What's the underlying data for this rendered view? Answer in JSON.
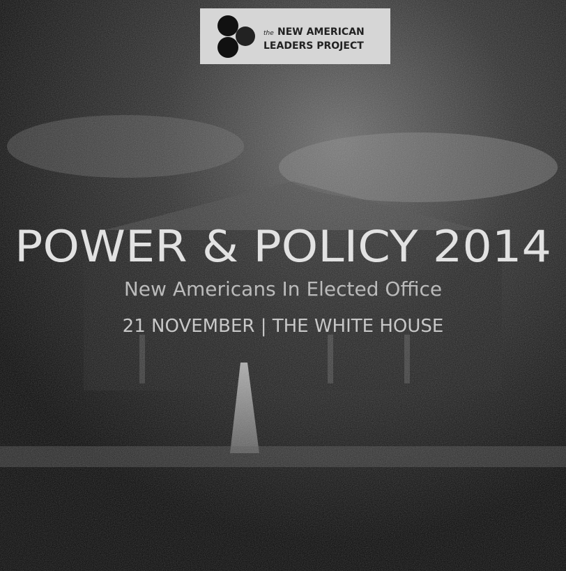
{
  "logo": {
    "prefix": "the",
    "line1": "NEW AMERICAN",
    "line2": "LEADERS PROJECT"
  },
  "title": "POWER & POLICY 2014",
  "subtitle": "New Americans In Elected Office",
  "event_line": "21 NOVEMBER | THE WHITE HOUSE"
}
